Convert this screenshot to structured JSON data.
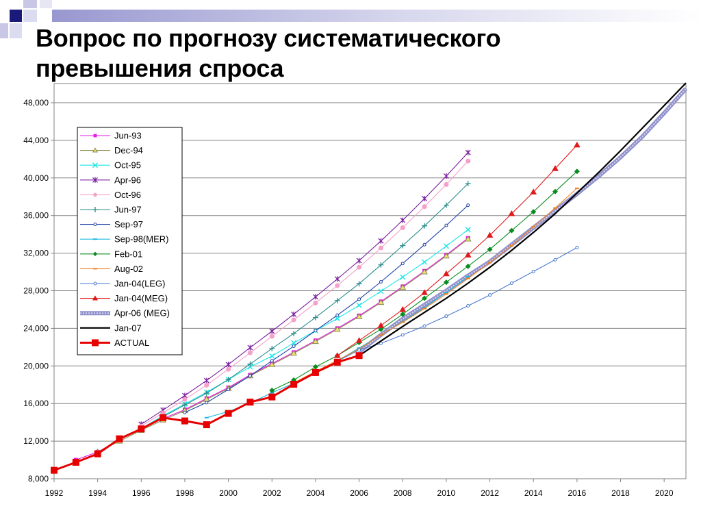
{
  "slide": {
    "title_line1": "Вопрос по прогнозу систематического",
    "title_line2": "превышения спроса",
    "colors": {
      "square_dark": "#1a1a7a",
      "square_light": "#c8c8e6",
      "band": "#b0b0d8"
    }
  },
  "chart_data": {
    "type": "line",
    "title": "",
    "xlabel": "",
    "ylabel": "",
    "xlim": [
      1992,
      2021
    ],
    "ylim": [
      8000,
      48000
    ],
    "x_ticks": [
      "1992",
      "1994",
      "1996",
      "1998",
      "2000",
      "2002",
      "2004",
      "2006",
      "2008",
      "2010",
      "2012",
      "2014",
      "2016",
      "2018",
      "2020"
    ],
    "y_ticks": [
      "8,000",
      "12,000",
      "16,000",
      "20,000",
      "24,000",
      "28,000",
      "32,000",
      "36,000",
      "40,000",
      "44,000",
      "48,000"
    ],
    "grid": "horizontal",
    "legend_position": "upper-left",
    "series": [
      {
        "name": "Jun-93",
        "color": "#e619e6",
        "marker": "square",
        "x": [
          1993,
          1994,
          1995,
          1996,
          1997,
          1998,
          1999,
          2000,
          2001,
          2002,
          2003,
          2004,
          2005,
          2006,
          2007,
          2008,
          2009,
          2010,
          2011
        ],
        "values": [
          10000,
          10850,
          12150,
          13350,
          14400,
          15350,
          16550,
          17700,
          19050,
          20250,
          21450,
          22700,
          24000,
          25350,
          26850,
          28450,
          30100,
          31800,
          33600
        ]
      },
      {
        "name": "Dec-94",
        "color": "#8c8c52",
        "marker": "triangle",
        "x": [
          1994,
          1995,
          1996,
          1997,
          1998,
          1999,
          2000,
          2001,
          2002,
          2003,
          2004,
          2005,
          2006,
          2007,
          2008,
          2009,
          2010,
          2011
        ],
        "values": [
          10850,
          12000,
          13150,
          14250,
          15250,
          16450,
          17600,
          18950,
          20150,
          21350,
          22600,
          23900,
          25250,
          26750,
          28350,
          30000,
          31700,
          33500
        ]
      },
      {
        "name": "Oct-95",
        "color": "#1ae6e6",
        "marker": "x",
        "x": [
          1995,
          1996,
          1997,
          1998,
          1999,
          2000,
          2001,
          2002,
          2003,
          2004,
          2005,
          2006,
          2007,
          2008,
          2009,
          2010,
          2011
        ],
        "values": [
          12150,
          13350,
          14700,
          15950,
          17200,
          18550,
          19900,
          21050,
          22450,
          23750,
          25050,
          26450,
          27950,
          29450,
          31050,
          32750,
          34500
        ]
      },
      {
        "name": "Apr-96",
        "color": "#7a1fa0",
        "marker": "star",
        "x": [
          1996,
          1997,
          1998,
          1999,
          2000,
          2001,
          2002,
          2003,
          2004,
          2005,
          2006,
          2007,
          2008,
          2009,
          2010,
          2011
        ],
        "values": [
          13800,
          15300,
          16850,
          18450,
          20150,
          21950,
          23700,
          25500,
          27350,
          29250,
          31200,
          33300,
          35500,
          37800,
          40200,
          42700
        ]
      },
      {
        "name": "Oct-96",
        "color": "#f4a0c8",
        "marker": "circle",
        "x": [
          1996,
          1997,
          1998,
          1999,
          2000,
          2001,
          2002,
          2003,
          2004,
          2005,
          2006,
          2007,
          2008,
          2009,
          2010,
          2011
        ],
        "values": [
          13600,
          15000,
          16450,
          17950,
          19650,
          21400,
          23150,
          24900,
          26700,
          28550,
          30500,
          32550,
          34700,
          36950,
          39300,
          41800
        ]
      },
      {
        "name": "Jun-97",
        "color": "#2a8c8c",
        "marker": "plus",
        "x": [
          1997,
          1998,
          1999,
          2000,
          2001,
          2002,
          2003,
          2004,
          2005,
          2006,
          2007,
          2008,
          2009,
          2010,
          2011
        ],
        "values": [
          14600,
          15850,
          17100,
          18550,
          20200,
          21850,
          23450,
          25150,
          26950,
          28750,
          30750,
          32800,
          34900,
          37100,
          39400
        ]
      },
      {
        "name": "Sep-97",
        "color": "#1e40a8",
        "marker": "dot",
        "x": [
          1998,
          1999,
          2000,
          2001,
          2002,
          2003,
          2004,
          2005,
          2006,
          2007,
          2008,
          2009,
          2010,
          2011
        ],
        "values": [
          15050,
          16100,
          17500,
          18950,
          20550,
          22100,
          23750,
          25400,
          27100,
          28950,
          30900,
          32900,
          34950,
          37100
        ]
      },
      {
        "name": "Sep-98(MER)",
        "color": "#1ab8e0",
        "marker": "dash",
        "x": [
          1999,
          2000,
          2001,
          2002,
          2003,
          2004,
          2005,
          2006,
          2007,
          2008,
          2009,
          2010,
          2011
        ],
        "values": [
          14500,
          15150,
          16050,
          17150,
          18150,
          19300,
          20550,
          21900,
          23300,
          24700,
          26200,
          27800,
          29500
        ]
      },
      {
        "name": "Feb-01",
        "color": "#0a8c1e",
        "marker": "diamond",
        "x": [
          2002,
          2003,
          2004,
          2005,
          2006,
          2007,
          2008,
          2009,
          2010,
          2011,
          2012,
          2013,
          2014,
          2015,
          2016
        ],
        "values": [
          17400,
          18500,
          19900,
          21100,
          22500,
          23900,
          25500,
          27200,
          28900,
          30600,
          32400,
          34400,
          36400,
          38550,
          40700
        ]
      },
      {
        "name": "Aug-02",
        "color": "#f08020",
        "marker": "dash",
        "x": [
          2003,
          2004,
          2005,
          2006,
          2007,
          2008,
          2009,
          2010,
          2011,
          2012,
          2013,
          2014,
          2015,
          2016
        ],
        "values": [
          18200,
          19400,
          20600,
          21800,
          23300,
          24650,
          26100,
          27650,
          29300,
          31000,
          32800,
          34800,
          36800,
          38900
        ]
      },
      {
        "name": "Jan-04(LEG)",
        "color": "#4a78d0",
        "marker": "dot",
        "x": [
          2005,
          2006,
          2007,
          2008,
          2009,
          2010,
          2011,
          2012,
          2013,
          2014,
          2015,
          2016
        ],
        "values": [
          20500,
          21700,
          22400,
          23300,
          24250,
          25300,
          26400,
          27550,
          28800,
          30050,
          31300,
          32600
        ]
      },
      {
        "name": "Jan-04(MEG)",
        "color": "#e01a1a",
        "marker": "triangle",
        "x": [
          2005,
          2006,
          2007,
          2008,
          2009,
          2010,
          2011,
          2012,
          2013,
          2014,
          2015,
          2016
        ],
        "values": [
          21100,
          22700,
          24300,
          26000,
          27800,
          29800,
          31800,
          33900,
          36200,
          38500,
          41000,
          43500
        ]
      },
      {
        "name": "Apr-06 (MEG)",
        "color": "#a0a0dc",
        "marker": "band",
        "x": [
          2006,
          2007,
          2008,
          2009,
          2010,
          2011,
          2012,
          2013,
          2014,
          2015,
          2016,
          2017,
          2018,
          2019,
          2020,
          2021
        ],
        "values": [
          21500,
          23300,
          25000,
          26500,
          28000,
          29600,
          31100,
          32900,
          34700,
          36500,
          38300,
          40200,
          42200,
          44400,
          46900,
          49500
        ]
      },
      {
        "name": "Jan-07",
        "color": "#000000",
        "marker": "none",
        "x": [
          2006,
          2007,
          2008,
          2009,
          2010,
          2011,
          2012,
          2013,
          2014,
          2015,
          2016,
          2017,
          2018,
          2019,
          2020,
          2021
        ],
        "values": [
          21100,
          22650,
          24200,
          25700,
          27200,
          28800,
          30500,
          32300,
          34200,
          36200,
          38400,
          40600,
          42900,
          45300,
          47700,
          50100
        ]
      },
      {
        "name": "ACTUAL",
        "color": "#e60000",
        "marker": "bigsquare",
        "x": [
          1992,
          1993,
          1994,
          1995,
          1996,
          1997,
          1998,
          1999,
          2000,
          2001,
          2002,
          2003,
          2004,
          2005,
          2006
        ],
        "values": [
          8900,
          9750,
          10650,
          12250,
          13300,
          14500,
          14150,
          13750,
          14950,
          16150,
          16700,
          18050,
          19300,
          20400,
          21100
        ]
      }
    ]
  }
}
